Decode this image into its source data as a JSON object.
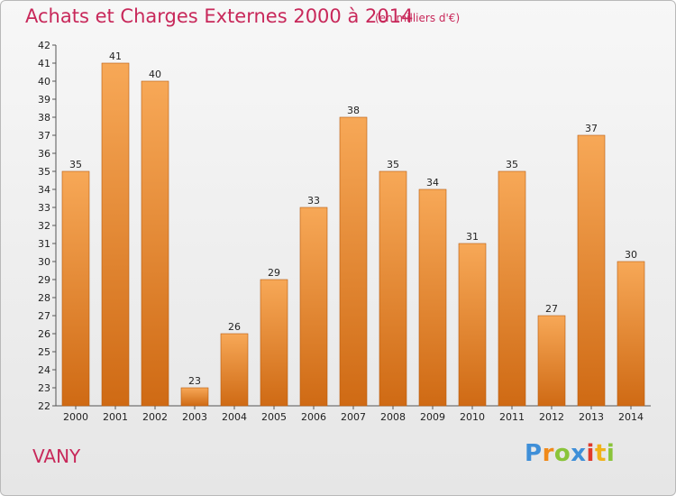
{
  "header": {
    "title": "Achats et Charges Externes 2000 à 2014",
    "unit": "(en milliers d'€)"
  },
  "footer": {
    "commune": "VANY",
    "logo_text": "Proxiti"
  },
  "colors": {
    "title": "#c8285a",
    "bar_top": "#f7a857",
    "bar_bottom": "#cf6a14"
  },
  "chart_data": {
    "type": "bar",
    "title": "Achats et Charges Externes 2000 à 2014",
    "subtitle": "(en milliers d'€)",
    "xlabel": "",
    "ylabel": "",
    "categories": [
      "2000",
      "2001",
      "2002",
      "2003",
      "2004",
      "2005",
      "2006",
      "2007",
      "2008",
      "2009",
      "2010",
      "2011",
      "2012",
      "2013",
      "2014"
    ],
    "values": [
      35,
      41,
      40,
      23,
      26,
      29,
      33,
      38,
      35,
      34,
      31,
      35,
      27,
      37,
      30
    ],
    "ylim": [
      22,
      42
    ],
    "yticks": [
      22,
      23,
      24,
      25,
      26,
      27,
      28,
      29,
      30,
      31,
      32,
      33,
      34,
      35,
      36,
      37,
      38,
      39,
      40,
      41,
      42
    ],
    "grid": false,
    "data_labels": true
  }
}
